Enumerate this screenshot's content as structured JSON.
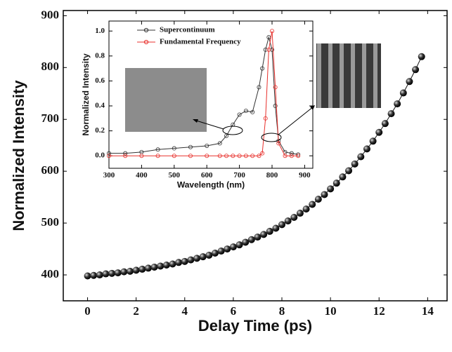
{
  "chart_data": [
    {
      "type": "line",
      "x": [
        0,
        0.25,
        0.5,
        0.75,
        1,
        1.25,
        1.5,
        1.75,
        2,
        2.25,
        2.5,
        2.75,
        3,
        3.25,
        3.5,
        3.75,
        4,
        4.25,
        4.5,
        4.75,
        5,
        5.25,
        5.5,
        5.75,
        6,
        6.25,
        6.5,
        6.75,
        7,
        7.25,
        7.5,
        7.75,
        8,
        8.25,
        8.5,
        8.75,
        9,
        9.25,
        9.5,
        9.75,
        10,
        10.25,
        10.5,
        10.75,
        11,
        11.25,
        11.5,
        11.75,
        12,
        12.25,
        12.5,
        12.75,
        13,
        13.25,
        13.5,
        13.75
      ],
      "series": [
        {
          "color": "#111111",
          "values": [
            398,
            399,
            400,
            402,
            403,
            404,
            406,
            407,
            409,
            411,
            413,
            415,
            417,
            419,
            421,
            424,
            426,
            429,
            432,
            435,
            438,
            442,
            446,
            450,
            454,
            458,
            463,
            468,
            473,
            478,
            484,
            490,
            497,
            504,
            511,
            519,
            527,
            536,
            546,
            555,
            566,
            577,
            589,
            601,
            614,
            628,
            643,
            658,
            675,
            692,
            711,
            730,
            751,
            773,
            796,
            821
          ]
        }
      ],
      "xlabel": "Delay Time (ps)",
      "ylabel": "Normalized Intensity",
      "xlim": [
        -1,
        14.8
      ],
      "ylim": [
        350,
        910
      ],
      "xticks": [
        0,
        2,
        4,
        6,
        8,
        10,
        12,
        14
      ],
      "yticks": [
        400,
        500,
        600,
        700,
        800,
        900
      ]
    },
    {
      "type": "line",
      "x": [
        300,
        350,
        400,
        450,
        500,
        550,
        600,
        640,
        660,
        680,
        700,
        720,
        740,
        760,
        770,
        780,
        790,
        800,
        810,
        820,
        840,
        860,
        880
      ],
      "series": [
        {
          "name": "Supercontinuum",
          "color": "#333333",
          "values": [
            0.02,
            0.02,
            0.03,
            0.05,
            0.06,
            0.07,
            0.08,
            0.1,
            0.16,
            0.25,
            0.33,
            0.36,
            0.35,
            0.55,
            0.7,
            0.85,
            0.95,
            0.85,
            0.4,
            0.12,
            0.03,
            0.02,
            0.01
          ]
        },
        {
          "name": "Fundamental Frequency",
          "color": "#e8302c",
          "values": [
            0,
            0,
            0,
            0,
            0,
            0,
            0,
            0,
            0,
            0,
            0,
            0,
            0,
            0,
            0.02,
            0.3,
            0.85,
            1.0,
            0.55,
            0.1,
            0,
            0,
            0
          ]
        }
      ],
      "xlabel": "Wavelength (nm)",
      "ylabel": "Normalized Intensity",
      "xlim": [
        300,
        925
      ],
      "ylim": [
        -0.1,
        1.08
      ],
      "xticks": [
        300,
        400,
        500,
        600,
        700,
        800,
        900
      ],
      "yticks": [
        {
          "value": 0,
          "label": "0.0"
        },
        {
          "value": 0.2,
          "label": "0.2"
        },
        {
          "value": 0.4,
          "label": "0.4"
        },
        {
          "value": 0.6,
          "label": "0.6"
        },
        {
          "value": 0.8,
          "label": "0.8"
        },
        {
          "value": 1.0,
          "label": "1.0"
        }
      ]
    }
  ]
}
